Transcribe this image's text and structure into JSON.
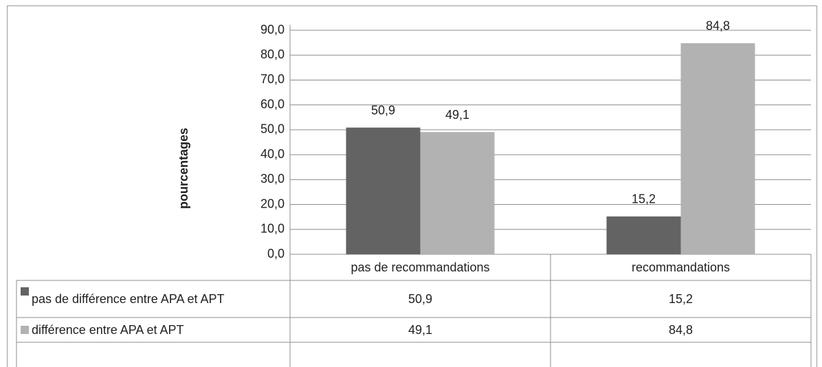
{
  "chart_data": {
    "type": "bar",
    "y_axis_label": "pourcentages",
    "categories": [
      "pas de recommandations",
      "recommandations"
    ],
    "series": [
      {
        "name": "pas de différence entre APA et APT",
        "color": "#636363",
        "values": [
          50.9,
          15.2
        ],
        "value_labels": [
          "50,9",
          "15,2"
        ]
      },
      {
        "name": "différence entre APA et APT",
        "color": "#b2b2b2",
        "values": [
          49.1,
          84.8
        ],
        "value_labels": [
          "49,1",
          "84,8"
        ]
      }
    ],
    "ylim": [
      0,
      90
    ],
    "yticks": [
      {
        "value": 0,
        "label": "0,0"
      },
      {
        "value": 10,
        "label": "10,0"
      },
      {
        "value": 20,
        "label": "20,0"
      },
      {
        "value": 30,
        "label": "30,0"
      },
      {
        "value": 40,
        "label": "40,0"
      },
      {
        "value": 50,
        "label": "50,0"
      },
      {
        "value": 60,
        "label": "60,0"
      },
      {
        "value": 70,
        "label": "70,0"
      },
      {
        "value": 80,
        "label": "80,0"
      },
      {
        "value": 90,
        "label": "90,0"
      }
    ],
    "grid": true
  }
}
